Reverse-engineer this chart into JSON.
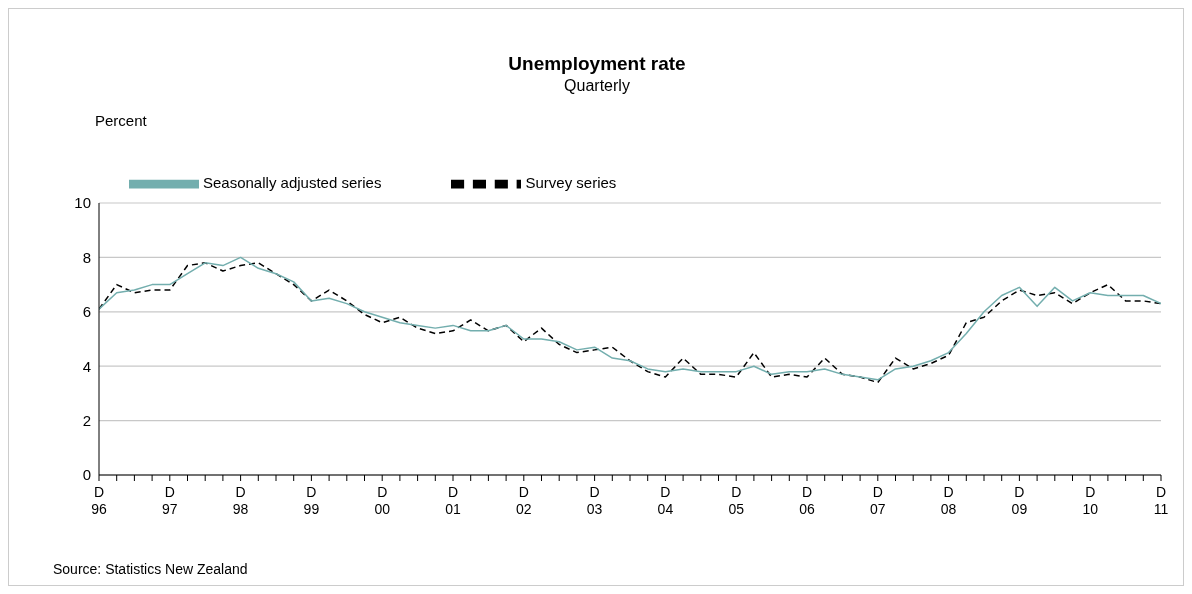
{
  "chart_data": {
    "type": "line",
    "title": "Unemployment rate",
    "subtitle": "Quarterly",
    "ylabel": "Percent",
    "categories": [
      "D 96",
      null,
      null,
      null,
      "D 97",
      null,
      null,
      null,
      "D 98",
      null,
      null,
      null,
      "D 99",
      null,
      null,
      null,
      "D 00",
      null,
      null,
      null,
      "D 01",
      null,
      null,
      null,
      "D 02",
      null,
      null,
      null,
      "D 03",
      null,
      null,
      null,
      "D 04",
      null,
      null,
      null,
      "D 05",
      null,
      null,
      null,
      "D 06",
      null,
      null,
      null,
      "D 07",
      null,
      null,
      null,
      "D 08",
      null,
      null,
      null,
      "D 09",
      null,
      null,
      null,
      "D 10",
      null,
      null,
      null,
      "D 11"
    ],
    "series": [
      {
        "name": "Survey series",
        "color": "#000000",
        "line_style": "dashed",
        "values": [
          6.1,
          7.0,
          6.7,
          6.8,
          6.8,
          7.7,
          7.8,
          7.5,
          7.7,
          7.8,
          7.4,
          7.0,
          6.4,
          6.8,
          6.4,
          5.9,
          5.6,
          5.8,
          5.4,
          5.2,
          5.3,
          5.7,
          5.3,
          5.5,
          4.9,
          5.4,
          4.8,
          4.5,
          4.6,
          4.7,
          4.2,
          3.8,
          3.6,
          4.3,
          3.7,
          3.7,
          3.6,
          4.5,
          3.6,
          3.7,
          3.6,
          4.3,
          3.7,
          3.6,
          3.4,
          4.3,
          3.9,
          4.1,
          4.4,
          5.6,
          5.8,
          6.4,
          6.8,
          6.6,
          6.7,
          6.3,
          6.7,
          7.0,
          6.4,
          6.4,
          6.3
        ]
      },
      {
        "name": "Seasonally adjusted series",
        "color": "#73aeae",
        "line_style": "solid",
        "values": [
          6.1,
          6.7,
          6.8,
          7.0,
          7.0,
          7.4,
          7.8,
          7.7,
          8.0,
          7.6,
          7.4,
          7.1,
          6.4,
          6.5,
          6.3,
          6.0,
          5.8,
          5.6,
          5.5,
          5.4,
          5.5,
          5.3,
          5.3,
          5.5,
          5.0,
          5.0,
          4.9,
          4.6,
          4.7,
          4.3,
          4.2,
          3.9,
          3.8,
          3.9,
          3.8,
          3.8,
          3.8,
          4.0,
          3.7,
          3.8,
          3.8,
          3.9,
          3.7,
          3.6,
          3.5,
          3.9,
          4.0,
          4.2,
          4.5,
          5.2,
          6.0,
          6.6,
          6.9,
          6.2,
          6.9,
          6.4,
          6.7,
          6.6,
          6.6,
          6.6,
          6.3
        ]
      }
    ],
    "ylim": [
      0,
      10
    ],
    "yticks": [
      0,
      2,
      4,
      6,
      8,
      10
    ],
    "grid": "y",
    "legend": "top left",
    "annotations": [
      "Source: Statistics New Zealand"
    ]
  }
}
